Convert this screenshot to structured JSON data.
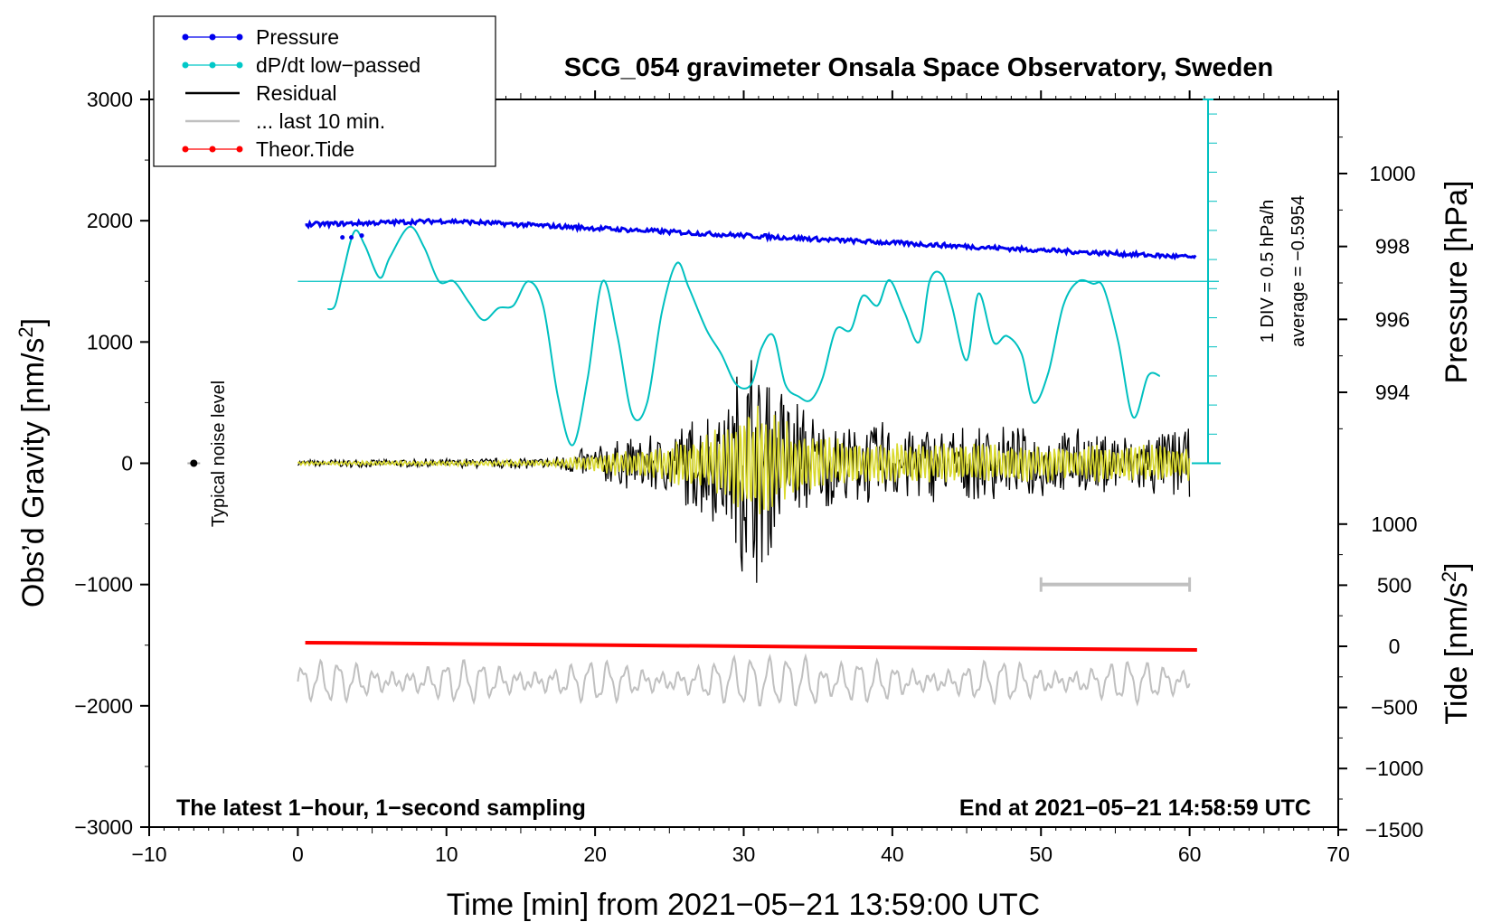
{
  "chart_data": {
    "type": "line",
    "title": "SCG_054 gravimeter Onsala Space Observatory, Sweden",
    "subtitle_left": "The latest 1−hour, 1−second sampling",
    "subtitle_right": "End at 2021−05−21 14:58:59 UTC",
    "xlabel": "Time [min] from 2021−05−21 13:59:00 UTC",
    "ylabel": "Obs’d Gravity [nm/s",
    "ylabel_sup": "2",
    "ylabel_end": "]",
    "y2label_pressure": "Pressure [hPa]",
    "y2label_tide": "Tide [nm/s",
    "y2label_tide_sup": "2",
    "y2label_tide_end": "]",
    "xlim": [
      -10,
      70
    ],
    "ylim": [
      -3000,
      3000
    ],
    "pressure_lim": [
      992,
      1002
    ],
    "tide_lim": [
      -1500,
      1500
    ],
    "x_ticks": [
      "−10",
      "0",
      "10",
      "20",
      "30",
      "40",
      "50",
      "60",
      "70"
    ],
    "y_ticks": [
      "−3000",
      "−2000",
      "−1000",
      "0",
      "1000",
      "2000",
      "3000"
    ],
    "pressure_ticks": [
      "994",
      "996",
      "998",
      "1000"
    ],
    "tide_ticks": [
      "−1500",
      "−1000",
      "−500",
      "0",
      "500",
      "1000"
    ],
    "legend": [
      {
        "label": "Pressure",
        "color": "#0000ee",
        "marker": true
      },
      {
        "label": "dP/dt low−passed",
        "color": "#00c8c8",
        "marker": true
      },
      {
        "label": "Residual",
        "color": "#000000",
        "marker": false
      },
      {
        "label": "... last 10 min.",
        "color": "#c0c0c0",
        "marker": false
      },
      {
        "label": "Theor.Tide",
        "color": "#ff0000",
        "marker": true
      }
    ],
    "annotations": {
      "noise_label": "Typical noise level",
      "div_label": "1 DIV = 0.5 hPa/h",
      "average_label": "average = −0.5954"
    },
    "series": [
      {
        "name": "Pressure",
        "unit": "hPa",
        "x": [
          0.5,
          10,
          20,
          30,
          40,
          50,
          60.5
        ],
        "values": [
          998.6,
          998.7,
          998.5,
          998.3,
          998.1,
          997.9,
          997.7
        ]
      },
      {
        "name": "dP/dt low-passed",
        "unit": "gravity-axis units",
        "x": [
          2,
          2.5,
          3,
          3.8,
          4.5,
          5.5,
          6.2,
          7.5,
          8.5,
          9.5,
          10.5,
          11.5,
          12.5,
          13.5,
          14.5,
          15.5,
          16.5,
          17.5,
          18.5,
          19.5,
          20.5,
          21.5,
          22.5,
          23.5,
          24.5,
          25.5,
          26.3,
          27.5,
          28.5,
          29.5,
          30.5,
          31.2,
          32,
          32.8,
          33.7,
          34.5,
          35.3,
          36.2,
          37.2,
          38,
          39,
          39.8,
          40.8,
          41.8,
          42.5,
          43.3,
          44,
          45,
          45.8,
          46.8,
          47.7,
          48.7,
          49.5,
          50.5,
          51.5,
          52.5,
          53.5,
          54.2,
          55.2,
          56.2,
          57.2,
          58
        ],
        "values": [
          1270,
          1300,
          1550,
          1910,
          1800,
          1530,
          1700,
          1950,
          1780,
          1500,
          1500,
          1330,
          1180,
          1280,
          1300,
          1500,
          1300,
          550,
          150,
          700,
          1500,
          1050,
          400,
          500,
          1250,
          1650,
          1450,
          1100,
          900,
          650,
          650,
          950,
          1050,
          650,
          550,
          520,
          700,
          1100,
          1100,
          1380,
          1300,
          1510,
          1250,
          1000,
          1500,
          1560,
          1300,
          850,
          1400,
          1000,
          1050,
          900,
          500,
          750,
          1300,
          1500,
          1480,
          1450,
          1000,
          380,
          720,
          720
        ]
      },
      {
        "name": "Residual",
        "unit": "nm/s^2",
        "x": [
          0,
          10,
          17,
          20,
          25,
          29,
          30.5,
          32,
          35,
          40,
          50,
          60
        ],
        "amplitude": [
          30,
          40,
          50,
          150,
          300,
          600,
          1100,
          800,
          400,
          350,
          300,
          300
        ]
      },
      {
        "name": "last 10 min.",
        "unit": "nm/s^2 (offset)",
        "x_range": [
          0,
          60
        ],
        "baseline": -1800,
        "amplitude": [
          80,
          250
        ]
      },
      {
        "name": "Theor.Tide",
        "unit": "nm/s^2",
        "x": [
          0.5,
          60.5
        ],
        "values": [
          30,
          -30
        ]
      }
    ],
    "noise_level_x": -7,
    "noise_level_y": 0,
    "scale_bar": {
      "x_range": [
        50,
        60
      ],
      "y": -1000
    }
  }
}
